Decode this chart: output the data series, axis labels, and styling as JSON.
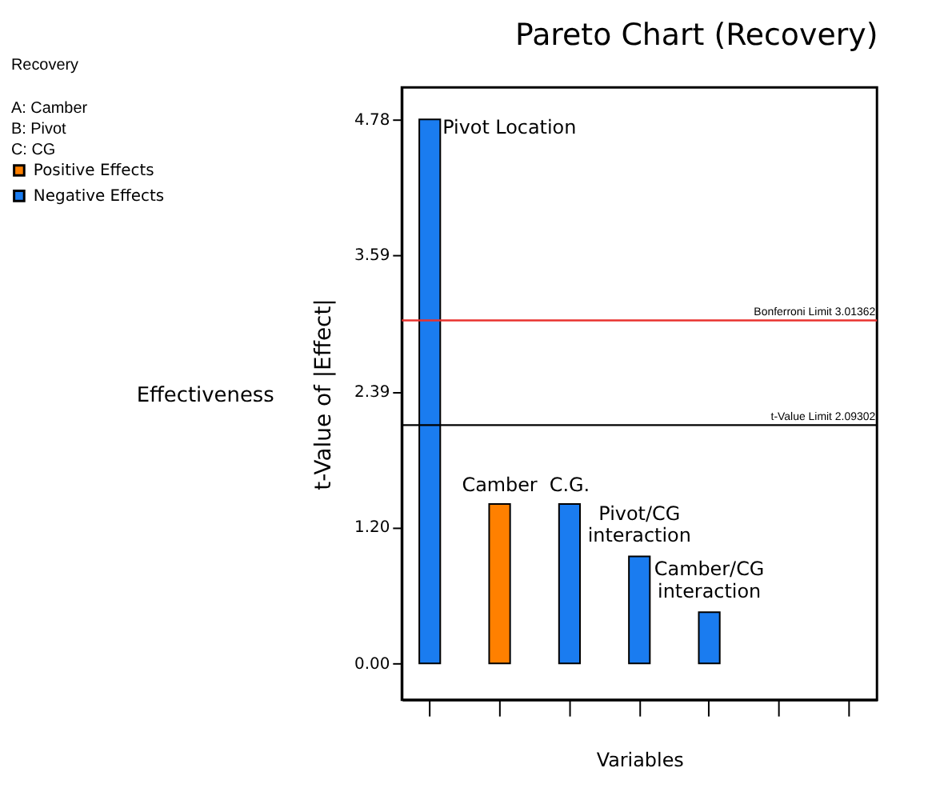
{
  "chart_data": {
    "type": "bar",
    "title": "Pareto Chart (Recovery)",
    "xlabel": "Variables",
    "ylabel": "t-Value of |Effect|",
    "categories": [
      null,
      null,
      null,
      null,
      null,
      null,
      null
    ],
    "series": [
      {
        "name": "Positive Effects",
        "color": "#ff8000",
        "values": [
          null,
          1.4,
          null,
          null,
          null,
          null,
          null
        ]
      },
      {
        "name": "Negative Effects",
        "color": "#1a7cf0",
        "values": [
          4.78,
          null,
          1.4,
          0.94,
          0.45,
          null,
          null
        ]
      }
    ],
    "value_labels": [
      "Pivot Location",
      "Camber",
      "C.G.",
      "Pivot/CG\ninteraction",
      "Camber/CG\ninteraction",
      null,
      null
    ],
    "ylim": [
      -0.32,
      5.06
    ],
    "yticks": [
      {
        "value": 0,
        "label": "0.00"
      },
      {
        "value": 1.2,
        "label": "1.20"
      },
      {
        "value": 2.39,
        "label": "2.39"
      },
      {
        "value": 3.59,
        "label": "3.59"
      },
      {
        "value": 4.78,
        "label": "4.78"
      }
    ],
    "ref_lines": [
      {
        "axis": "y",
        "value": 3.01362,
        "label": "Bonferroni Limit 3.01362",
        "color": "#e8322e"
      },
      {
        "axis": "y",
        "value": 2.09302,
        "label": "t-Value Limit 2.09302",
        "color": "#000000"
      }
    ],
    "annotations": [
      "Recovery",
      "A: Camber",
      "B: Pivot",
      "C: CG",
      "Effectiveness"
    ],
    "legend": "top left",
    "grid": false,
    "tick_labels": "y"
  }
}
